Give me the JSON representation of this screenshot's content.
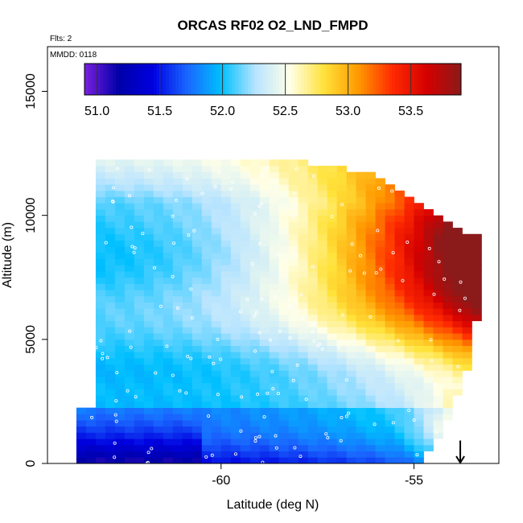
{
  "chart_data": {
    "type": "heatmap",
    "title": "ORCAS RF02 O2_LND_FMPD",
    "flights_label": "Flts: 2",
    "date_label": "MMDD: 0118",
    "xlabel": "Latitude (deg N)",
    "ylabel": "Altitude (m)",
    "xlim": [
      -64.5,
      -52.8
    ],
    "ylim": [
      0,
      16800
    ],
    "x_ticks": [
      -60,
      -55
    ],
    "x_tick_labels": [
      "-60",
      "-55"
    ],
    "y_ticks": [
      0,
      5000,
      10000,
      15000
    ],
    "y_tick_labels": [
      "0",
      "5000",
      "10000",
      "15000"
    ],
    "colorbar": {
      "range": [
        50.9,
        53.9
      ],
      "ticks": [
        51.0,
        51.5,
        52.0,
        52.5,
        53.0,
        53.5
      ],
      "tick_labels": [
        "51.0",
        "51.5",
        "52.0",
        "52.5",
        "53.0",
        "53.5"
      ],
      "colors": [
        "#7b1fe0",
        "#0000a8",
        "#0000e0",
        "#1a66ff",
        "#00c0ff",
        "#b8e4ff",
        "#ffffe8",
        "#ffe23a",
        "#ff9900",
        "#ff2a00",
        "#d40000",
        "#8b1a1a"
      ]
    },
    "arrow_marker": {
      "latitude": -53.8,
      "altitude": 600
    },
    "grid_cell": {
      "dlat": 0.25,
      "dalt": 250
    },
    "field_description": "O2 values increase northward; low values near surface at southern latitudes, high values at mid-upper altitudes near -54",
    "colors": {
      "axis": "#000000",
      "sample_points": "#ffffff"
    }
  }
}
